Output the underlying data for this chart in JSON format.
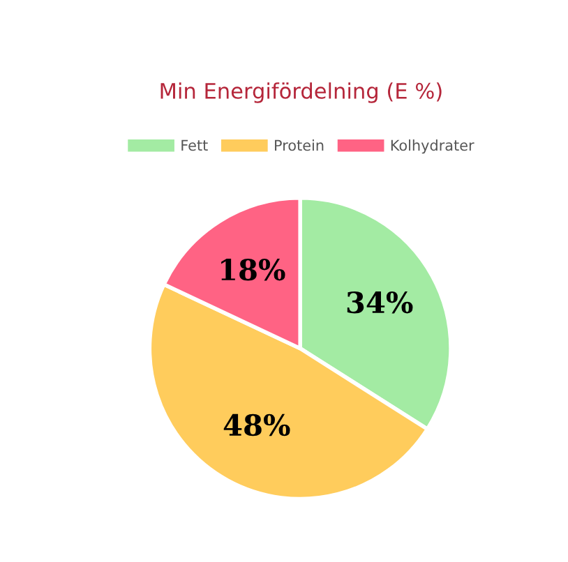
{
  "chart_data": {
    "type": "pie",
    "title": "Min Energifördelning (E %)",
    "categories": [
      "Fett",
      "Protein",
      "Kolhydrater"
    ],
    "values": [
      34,
      48,
      18
    ],
    "colors": [
      "#a3eba3",
      "#ffcc5c",
      "#ff6384"
    ],
    "value_labels": [
      "34%",
      "48%",
      "18%"
    ],
    "legend": "top"
  }
}
